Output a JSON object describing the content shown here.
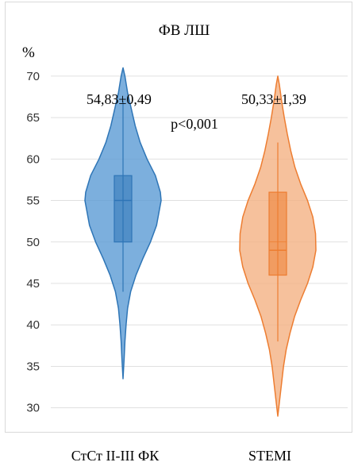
{
  "chart_data": {
    "type": "violin",
    "title": "ФВ ЛШ",
    "ylabel": "%",
    "xlabel": "",
    "ylim": [
      27,
      72
    ],
    "yticks": [
      30,
      35,
      40,
      45,
      50,
      55,
      60,
      65,
      70
    ],
    "yticklabels": [
      "30",
      "35",
      "40",
      "45",
      "50",
      "55",
      "60",
      "65",
      "70"
    ],
    "grid": true,
    "categories": [
      "СтСт ІІ-ІІІ ФК",
      "STEMI"
    ],
    "series": [
      {
        "category": "СтСт ІІ-ІІІ ФК",
        "color": "#5b9bd5",
        "edge_color": "#2e75b6",
        "min": 33.5,
        "max": 71,
        "q1": 50,
        "median": 55,
        "q3": 58,
        "whisker_low": 44,
        "whisker_high": 67,
        "density": [
          [
            33.5,
            0.0
          ],
          [
            36,
            0.03
          ],
          [
            38,
            0.05
          ],
          [
            40,
            0.08
          ],
          [
            42,
            0.12
          ],
          [
            44,
            0.2
          ],
          [
            46,
            0.34
          ],
          [
            48,
            0.52
          ],
          [
            50,
            0.72
          ],
          [
            52,
            0.88
          ],
          [
            54,
            0.96
          ],
          [
            55,
            1.0
          ],
          [
            56,
            0.98
          ],
          [
            58,
            0.85
          ],
          [
            60,
            0.63
          ],
          [
            62,
            0.45
          ],
          [
            64,
            0.32
          ],
          [
            66,
            0.22
          ],
          [
            68,
            0.12
          ],
          [
            70,
            0.05
          ],
          [
            71,
            0.0
          ]
        ],
        "annotation": "54,83±0,49"
      },
      {
        "category": "STEMI",
        "color": "#f4b183",
        "edge_color": "#ed7d31",
        "min": 29,
        "max": 70,
        "q1": 46,
        "median": 49,
        "mean_line": 50,
        "q3": 56,
        "whisker_low": 38,
        "whisker_high": 62,
        "density": [
          [
            29,
            0.0
          ],
          [
            31,
            0.05
          ],
          [
            33,
            0.1
          ],
          [
            35,
            0.15
          ],
          [
            37,
            0.22
          ],
          [
            39,
            0.32
          ],
          [
            41,
            0.44
          ],
          [
            43,
            0.6
          ],
          [
            45,
            0.78
          ],
          [
            47,
            0.92
          ],
          [
            49,
            1.0
          ],
          [
            51,
            0.99
          ],
          [
            53,
            0.92
          ],
          [
            55,
            0.78
          ],
          [
            57,
            0.6
          ],
          [
            59,
            0.45
          ],
          [
            61,
            0.34
          ],
          [
            63,
            0.25
          ],
          [
            65,
            0.17
          ],
          [
            67,
            0.1
          ],
          [
            69,
            0.04
          ],
          [
            70,
            0.0
          ]
        ],
        "annotation": "50,33±1,39"
      }
    ],
    "p_annotation": "p<0,001"
  }
}
